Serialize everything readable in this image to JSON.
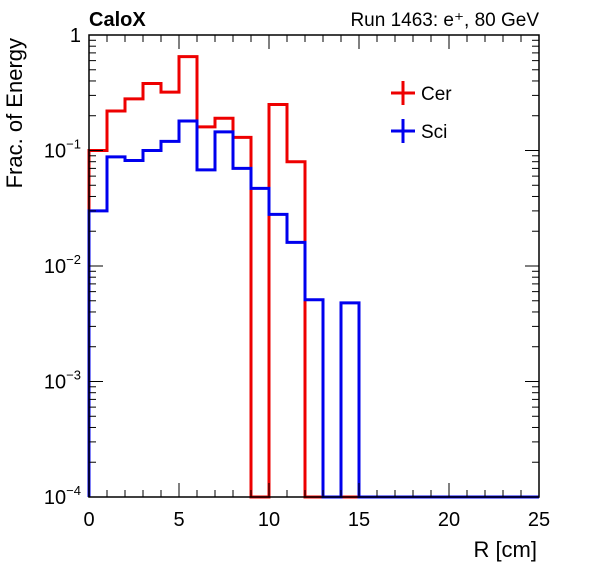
{
  "header": {
    "left_label": "CaloX",
    "right_label": "Run 1463: e⁺, 80 GeV"
  },
  "chart_data": {
    "type": "histogram",
    "title": "",
    "xlabel": "R [cm]",
    "ylabel": "Frac. of Energy",
    "xlim": [
      0,
      25
    ],
    "ylim": [
      0.0001,
      1
    ],
    "yscale": "log",
    "x_ticks": [
      0,
      5,
      10,
      15,
      20,
      25
    ],
    "x_tick_labels": [
      "0",
      "5",
      "10",
      "15",
      "20",
      "25"
    ],
    "y_ticks": [
      0.0001,
      0.001,
      0.01,
      0.1,
      1
    ],
    "y_tick_labels": [
      {
        "base": "10",
        "exp": "−4"
      },
      {
        "base": "10",
        "exp": "−3"
      },
      {
        "base": "10",
        "exp": "−2"
      },
      {
        "base": "10",
        "exp": "−1"
      },
      {
        "base": "1",
        "exp": ""
      }
    ],
    "bin_edges": [
      0,
      1,
      2,
      3,
      4,
      5,
      6,
      7,
      8,
      9,
      10,
      11,
      12,
      13,
      14,
      15,
      16,
      17,
      18,
      19,
      20,
      21,
      22,
      23,
      24,
      25
    ],
    "series": [
      {
        "name": "Cer",
        "color": "#ee0000",
        "values": [
          0.1,
          0.22,
          0.28,
          0.38,
          0.32,
          0.65,
          0.16,
          0.19,
          0.13,
          0,
          0.25,
          0.08,
          0,
          0,
          0,
          0,
          0,
          0,
          0,
          0,
          0,
          0,
          0,
          0,
          0
        ]
      },
      {
        "name": "Sci",
        "color": "#0000ee",
        "values": [
          0.03,
          0.088,
          0.082,
          0.1,
          0.12,
          0.18,
          0.068,
          0.145,
          0.07,
          0.047,
          0.028,
          0.016,
          0.0051,
          0,
          0.0048,
          0,
          0,
          0,
          0,
          0,
          0,
          0,
          0,
          0,
          0
        ]
      }
    ],
    "grid": false,
    "legend_position": "top-right"
  }
}
